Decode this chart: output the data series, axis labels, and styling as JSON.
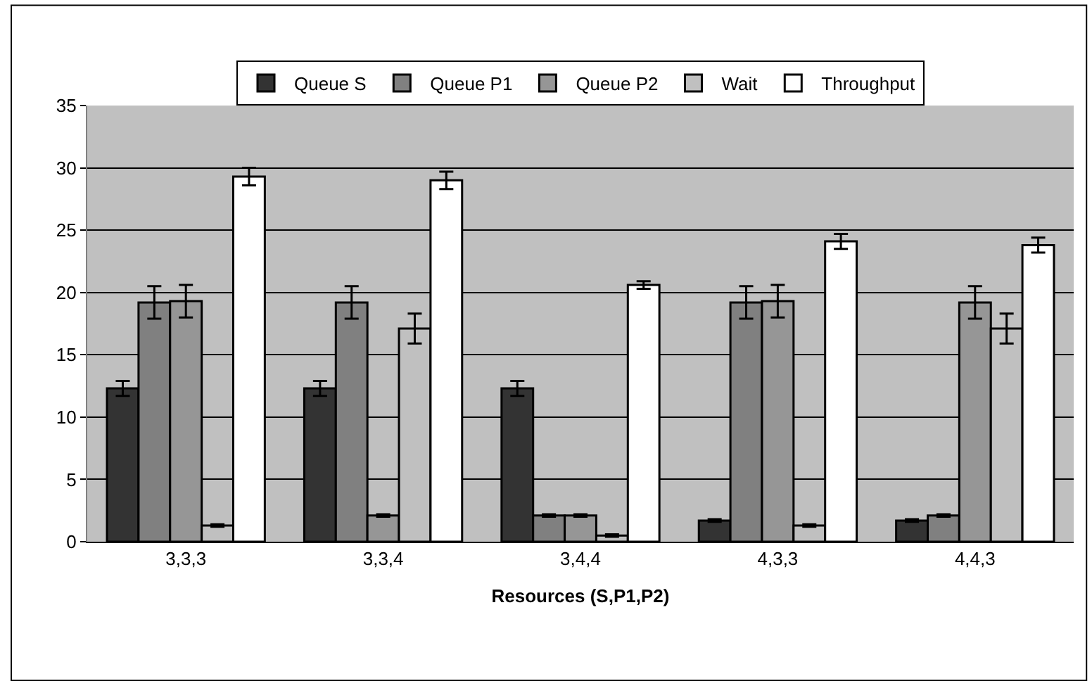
{
  "chart_data": {
    "type": "bar",
    "xlabel": "Resources (S,P1,P2)",
    "categories": [
      "3,3,3",
      "3,3,4",
      "3,4,4",
      "4,3,3",
      "4,4,3"
    ],
    "series": [
      {
        "name": "Queue S",
        "color": "#333333",
        "values": [
          12.3,
          12.3,
          12.3,
          1.7,
          1.7
        ],
        "errors": [
          0.6,
          0.6,
          0.6,
          0.1,
          0.1
        ]
      },
      {
        "name": "Queue P1",
        "color": "#808080",
        "values": [
          19.2,
          19.2,
          2.1,
          19.2,
          2.1
        ],
        "errors": [
          1.3,
          1.3,
          0.1,
          1.3,
          0.1
        ]
      },
      {
        "name": "Queue P2",
        "color": "#969696",
        "values": [
          19.3,
          2.1,
          2.1,
          19.3,
          19.2
        ],
        "errors": [
          1.3,
          0.1,
          0.1,
          1.3,
          1.3
        ]
      },
      {
        "name": "Wait",
        "color": "#c0c0c0",
        "values": [
          1.3,
          17.1,
          0.5,
          1.3,
          17.1
        ],
        "errors": [
          0.1,
          1.2,
          0.1,
          0.1,
          1.2
        ]
      },
      {
        "name": "Throughput",
        "color": "#ffffff",
        "values": [
          29.3,
          29.0,
          20.6,
          24.1,
          23.8
        ],
        "errors": [
          0.7,
          0.7,
          0.3,
          0.6,
          0.6
        ]
      }
    ],
    "ylim": [
      0,
      35
    ],
    "yticks": [
      0,
      5,
      10,
      15,
      20,
      25,
      30,
      35
    ],
    "grid": "y",
    "legend": "top"
  }
}
